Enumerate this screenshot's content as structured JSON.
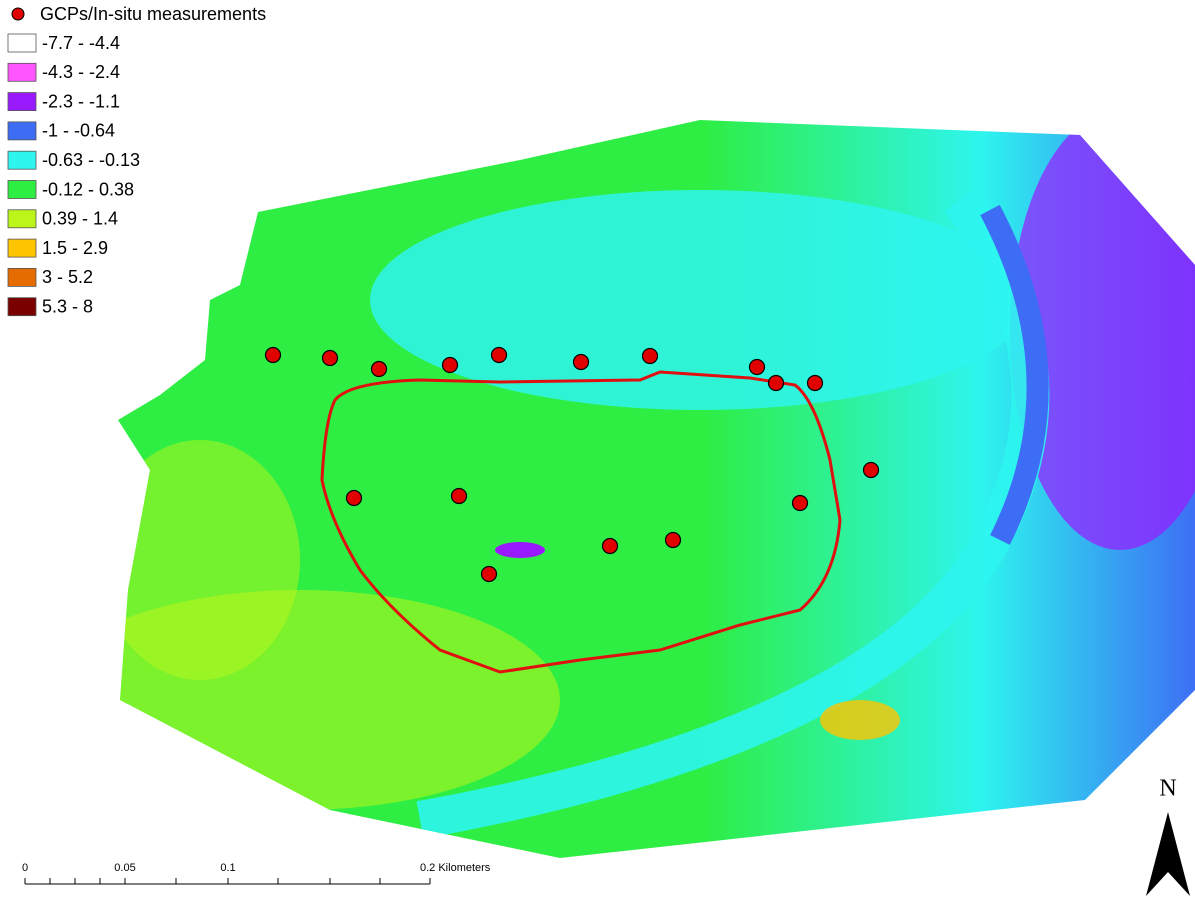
{
  "legend": {
    "point_label": "GCPs/In-situ measurements",
    "classes": [
      {
        "label": "-7.7 - -4.4",
        "color": "#ffffff"
      },
      {
        "label": "-4.3 - -2.4",
        "color": "#ff55ff"
      },
      {
        "label": "-2.3 - -1.1",
        "color": "#9a1aff"
      },
      {
        "label": "-1 - -0.64",
        "color": "#3d6cf5"
      },
      {
        "label": "-0.63 - -0.13",
        "color": "#2ef5ee"
      },
      {
        "label": "-0.12 - 0.38",
        "color": "#2eee44"
      },
      {
        "label": "0.39 - 1.4",
        "color": "#bbf51a"
      },
      {
        "label": "1.5 - 2.9",
        "color": "#ffc400"
      },
      {
        "label": "3 - 5.2",
        "color": "#e56c00"
      },
      {
        "label": "5.3 - 8",
        "color": "#7a0000"
      }
    ]
  },
  "scale_bar": {
    "labels": [
      "0",
      "0.05",
      "0.1",
      "0.2 Kilometers"
    ]
  },
  "north_arrow": "N"
}
